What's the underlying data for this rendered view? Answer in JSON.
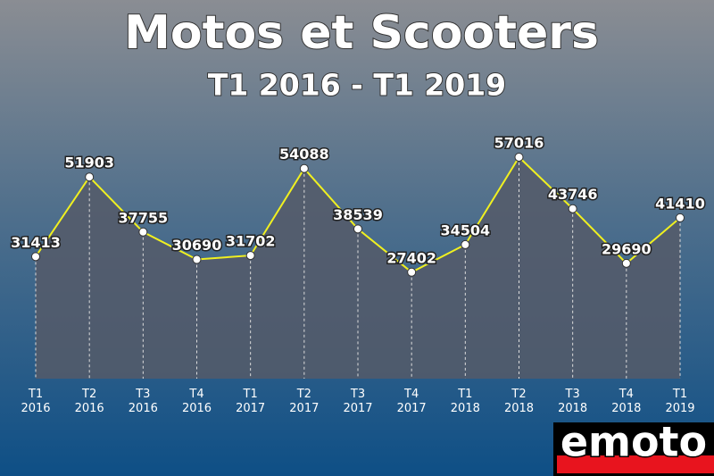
{
  "chart_data": {
    "type": "line",
    "title": "Motos et Scooters",
    "subtitle": "T1 2016 - T1 2019",
    "categories": [
      [
        "T1",
        "2016"
      ],
      [
        "T2",
        "2016"
      ],
      [
        "T3",
        "2016"
      ],
      [
        "T4",
        "2016"
      ],
      [
        "T1",
        "2017"
      ],
      [
        "T2",
        "2017"
      ],
      [
        "T3",
        "2017"
      ],
      [
        "T4",
        "2017"
      ],
      [
        "T1",
        "2018"
      ],
      [
        "T2",
        "2018"
      ],
      [
        "T3",
        "2018"
      ],
      [
        "T4",
        "2018"
      ],
      [
        "T1",
        "2019"
      ]
    ],
    "values": [
      31413,
      51903,
      37755,
      30690,
      31702,
      54088,
      38539,
      27402,
      34504,
      57016,
      43746,
      29690,
      41410
    ],
    "color": "#f0f020",
    "ylim": [
      0,
      60000
    ]
  },
  "logo": "emoto"
}
